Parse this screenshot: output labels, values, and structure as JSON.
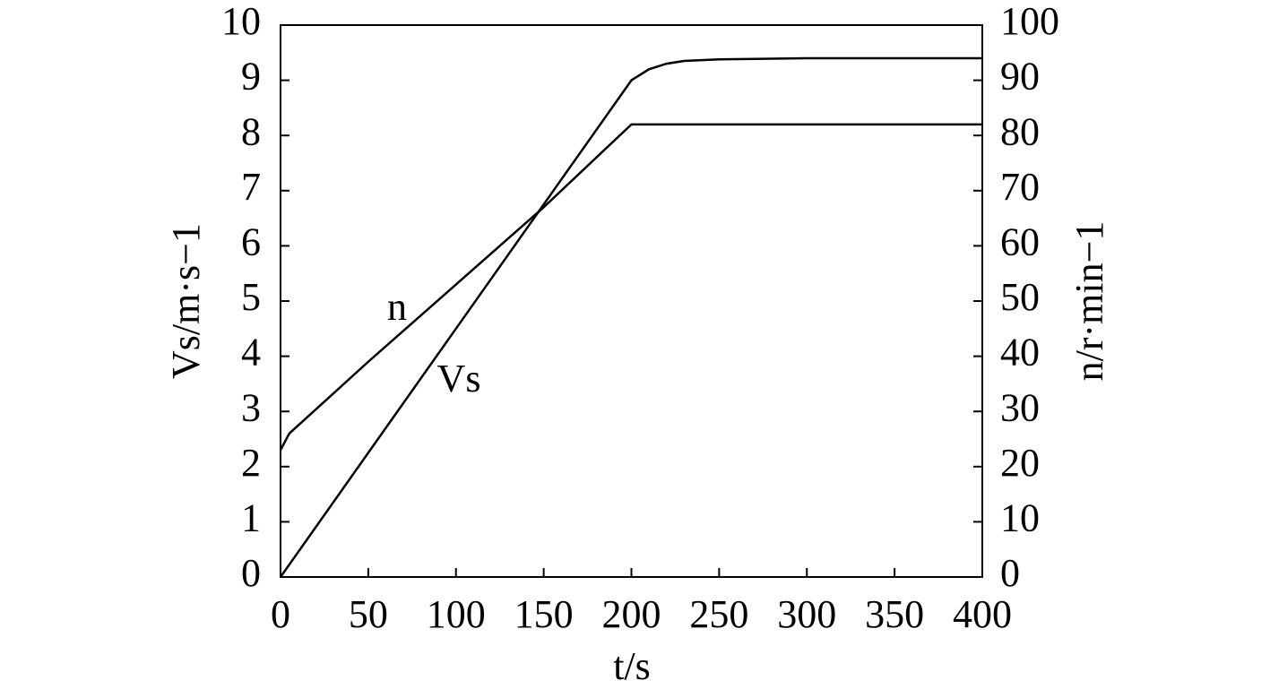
{
  "chart_data": {
    "type": "line",
    "x_label": "t/s",
    "y_label": "Vs/m·s−1",
    "y2_label": "n/r·min−1",
    "xlim": [
      0,
      400
    ],
    "xticks": [
      0,
      50,
      100,
      150,
      200,
      250,
      300,
      350,
      400
    ],
    "ylim": [
      0,
      10
    ],
    "yticks": [
      0,
      1,
      2,
      3,
      4,
      5,
      6,
      7,
      8,
      9,
      10
    ],
    "y2lim": [
      0,
      100
    ],
    "y2ticks": [
      0,
      10,
      20,
      30,
      40,
      50,
      60,
      70,
      80,
      90,
      100
    ],
    "series": [
      {
        "name": "Vs",
        "color": "#000000",
        "x": [
          0,
          50,
          100,
          150,
          200,
          210,
          220,
          230,
          250,
          300,
          350,
          400
        ],
        "values": [
          0,
          2.25,
          4.5,
          6.75,
          9.0,
          9.2,
          9.3,
          9.35,
          9.38,
          9.4,
          9.4,
          9.4
        ]
      },
      {
        "name": "n",
        "color": "#000000",
        "axis": "y2",
        "x": [
          0,
          5,
          50,
          100,
          150,
          200,
          250,
          300,
          350,
          400
        ],
        "values": [
          23,
          26,
          39,
          53,
          67,
          82,
          82,
          82,
          82,
          82
        ]
      }
    ]
  }
}
